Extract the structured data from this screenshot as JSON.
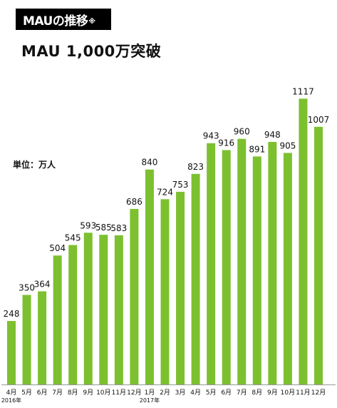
{
  "header": {
    "title": "MAUの推移",
    "title_note": "※",
    "subtitle": "MAU 1,000万突破"
  },
  "chart_data": {
    "type": "bar",
    "unit_label": "単位：万人",
    "categories": [
      "4月",
      "5月",
      "6月",
      "7月",
      "8月",
      "9月",
      "10月",
      "11月",
      "12月",
      "1月",
      "2月",
      "3月",
      "4月",
      "5月",
      "6月",
      "7月",
      "8月",
      "9月",
      "10月",
      "11月",
      "12月"
    ],
    "year_labels": [
      {
        "index": 0,
        "label": "2016年"
      },
      {
        "index": 9,
        "label": "2017年"
      }
    ],
    "values": [
      248,
      350,
      364,
      504,
      545,
      593,
      585,
      583,
      686,
      840,
      724,
      753,
      823,
      943,
      916,
      960,
      891,
      948,
      905,
      1117,
      1007
    ],
    "bar_color": "#7cc030",
    "ylim": [
      0,
      1200
    ],
    "grid": false
  }
}
